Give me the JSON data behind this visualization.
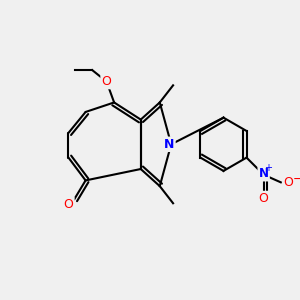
{
  "background_color": "#f0f0f0",
  "bond_color": "black",
  "atom_colors": {
    "O": "red",
    "N": "blue",
    "C": "black"
  },
  "title": "",
  "figsize": [
    3.0,
    3.0
  ],
  "dpi": 100
}
